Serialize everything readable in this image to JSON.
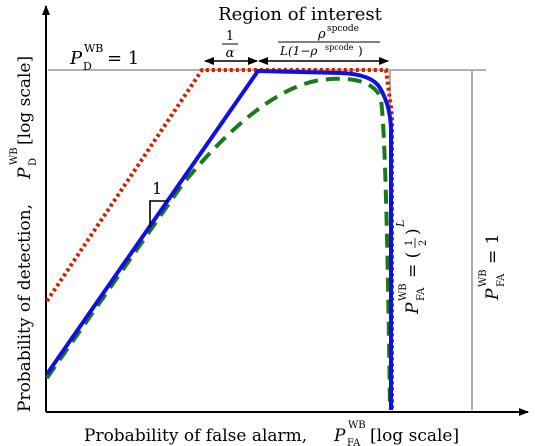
{
  "labels": {
    "region_of_interest": "Region of interest",
    "pd_line": {
      "var": "P",
      "sub": "D",
      "sup": "WB",
      "rest": " = 1"
    },
    "alpha_frac": {
      "num": "1",
      "den": "α"
    },
    "rho_frac": {
      "num_base": "ρ",
      "num_sup": "spcode",
      "den": "L(1−ρ",
      "den_sup": "spcode",
      "den_end": ")"
    },
    "slope_label": "1",
    "xlabel": {
      "text": "Probability of false alarm, ",
      "var": "P",
      "sub": "FA",
      "sup": "WB",
      "suffix": " [log scale]"
    },
    "ylabel": {
      "text": "Probability of detection, ",
      "var": "P",
      "sub": "D",
      "sup": "WB",
      "suffix": " [log scale]"
    },
    "pfa_half": {
      "var": "P",
      "sub": "FA",
      "sup": "WB",
      "rest": " = (",
      "frac_num": "1",
      "frac_den": "2",
      "close": ")",
      "exp": "L"
    },
    "pfa_one": {
      "var": "P",
      "sub": "FA",
      "sup": "WB",
      "rest": " = 1"
    }
  },
  "colors": {
    "solid_curve": "#1010e0",
    "dashed_curve": "#1a7a1a",
    "dotted_curve": "#cc2200",
    "reference_lines": "#b0b0b0",
    "axes": "#000000"
  }
}
